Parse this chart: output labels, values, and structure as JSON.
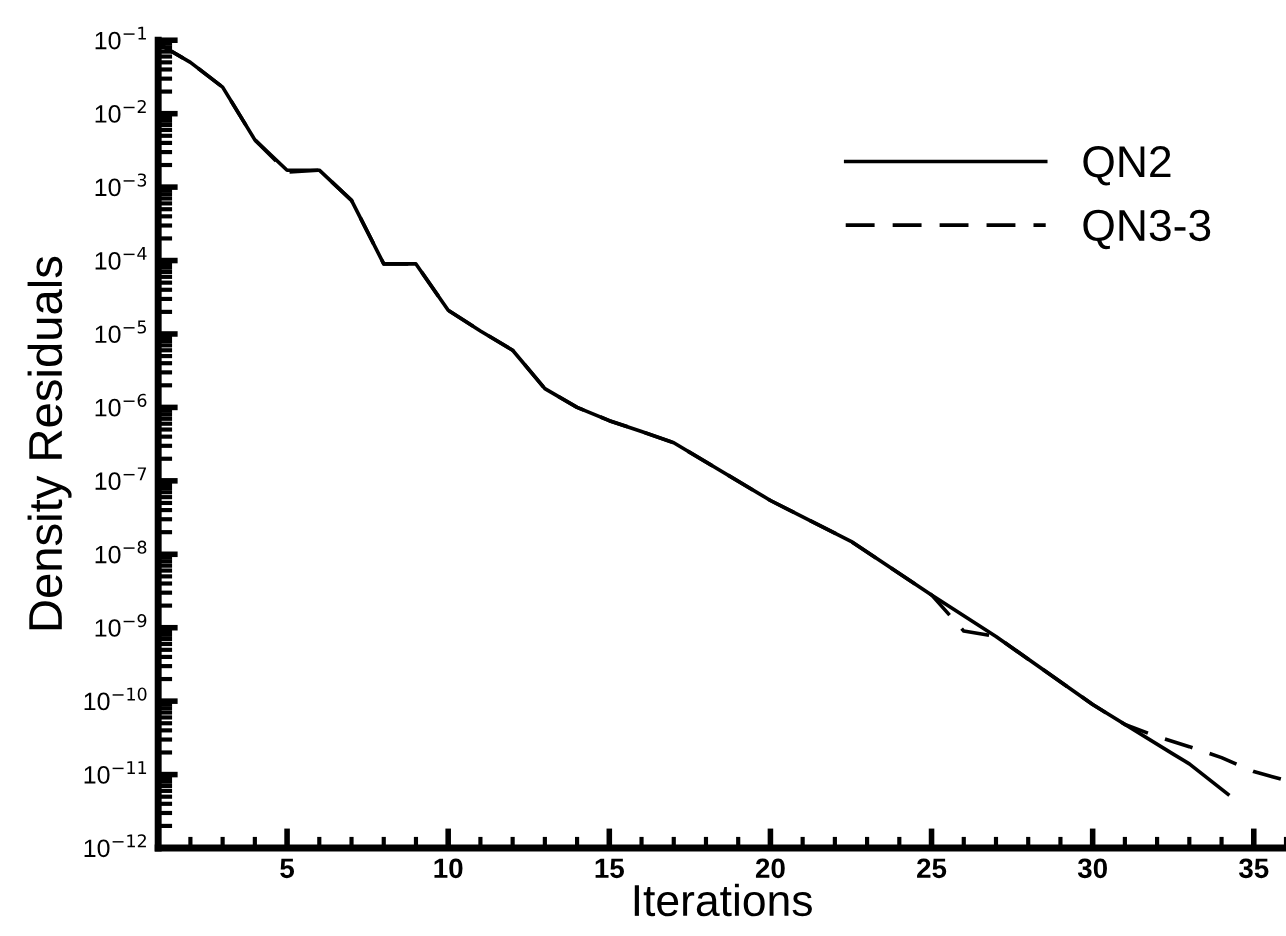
{
  "chart_data": {
    "type": "line",
    "xlabel": "Iterations",
    "ylabel": "Density Residuals",
    "log": "y",
    "grid": false,
    "legend": "top right",
    "marker": "none",
    "xlim": [
      1,
      36
    ],
    "xticks": [
      {
        "value": 1,
        "label": null
      },
      5,
      10,
      15,
      20,
      25,
      30,
      35
    ],
    "ylim": [
      1e-12,
      0.1
    ],
    "yticks": [
      {
        "value": 0.1,
        "label": "10$^{−1}$"
      },
      {
        "value": 0.01,
        "label": "10$^{−2}$"
      },
      {
        "value": 0.001,
        "label": "10$^{−3}$"
      },
      {
        "value": 0.0001,
        "label": "10$^{−4}$"
      },
      {
        "value": 1e-05,
        "label": "10$^{−5}$"
      },
      {
        "value": 1e-06,
        "label": "10$^{−6}$"
      },
      {
        "value": 1e-07,
        "label": "10$^{−7}$"
      },
      {
        "value": 1e-08,
        "label": "10$^{−8}$"
      },
      {
        "value": 1e-09,
        "label": "10$^{−9}$"
      },
      {
        "value": 1e-10,
        "label": "10$^{−10}$"
      },
      {
        "value": 1e-11,
        "label": "10$^{−11}$"
      },
      {
        "value": 1e-12,
        "label": "10$^{−12}$"
      }
    ],
    "series": [
      {
        "name": "QN2",
        "color": "#000000",
        "line_style": "solid",
        "x": [
          1,
          2,
          3,
          4,
          5,
          6,
          7,
          8,
          9,
          10,
          11,
          12,
          13,
          14,
          15,
          16,
          17,
          20,
          22.5,
          25,
          27,
          30,
          32.5,
          33,
          34.2
        ],
        "values": [
          0.09,
          0.05,
          0.023,
          0.0044,
          0.0017,
          0.0017,
          0.00066,
          9e-05,
          9e-05,
          2.1e-05,
          1.1e-05,
          6e-06,
          1.8e-06,
          1e-06,
          6.6e-07,
          4.7e-07,
          3.3e-07,
          5.4e-08,
          1.5e-08,
          2.8e-09,
          7.6e-10,
          9e-11,
          1.9e-11,
          1.4e-11,
          5.4e-12
        ]
      },
      {
        "name": "QN3-3",
        "color": "#000000",
        "line_style": "dashed",
        "x": [
          1,
          2,
          3,
          4,
          5,
          6,
          7,
          8,
          9,
          10,
          11,
          12,
          13,
          14,
          15,
          16,
          17,
          20,
          22.5,
          25,
          26,
          27,
          30,
          31,
          32,
          33,
          34,
          35,
          36
        ],
        "values": [
          0.09,
          0.05,
          0.023,
          0.0044,
          0.0016,
          0.0017,
          0.00066,
          9e-05,
          9e-05,
          2.1e-05,
          1.1e-05,
          6e-06,
          1.8e-06,
          1e-06,
          6.6e-07,
          4.7e-07,
          3.3e-07,
          5.4e-08,
          1.5e-08,
          2.8e-09,
          9e-10,
          7.6e-10,
          9e-11,
          4.8e-11,
          3.3e-11,
          2.4e-11,
          1.7e-11,
          1.1e-11,
          8.3e-12
        ]
      }
    ]
  }
}
